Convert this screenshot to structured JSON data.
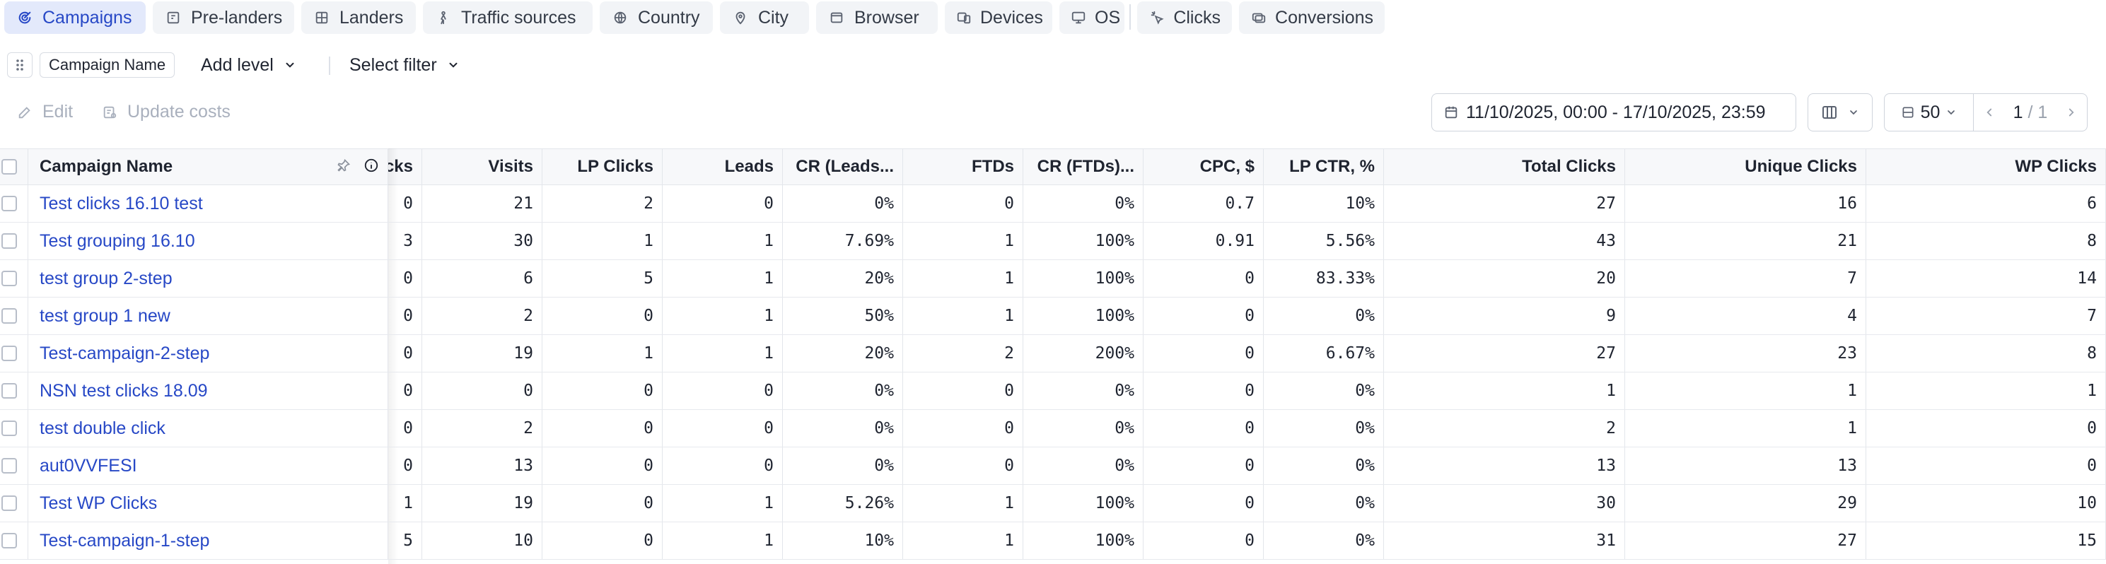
{
  "tabs": [
    {
      "label": "Campaigns",
      "icon": "campaigns-icon",
      "active": true
    },
    {
      "label": "Pre-landers",
      "icon": "pre-landers-icon",
      "active": false
    },
    {
      "label": "Landers",
      "icon": "landers-icon",
      "active": false
    },
    {
      "label": "Traffic sources",
      "icon": "traffic-sources-icon",
      "active": false
    },
    {
      "label": "Country",
      "icon": "globe-icon",
      "active": false
    },
    {
      "label": "City",
      "icon": "map-pin-icon",
      "active": false
    },
    {
      "label": "Browser",
      "icon": "browser-icon",
      "active": false
    },
    {
      "label": "Devices",
      "icon": "devices-icon",
      "active": false
    },
    {
      "label": "OS",
      "icon": "monitor-icon",
      "active": false
    },
    {
      "label": "Clicks",
      "icon": "clicks-icon",
      "active": false
    },
    {
      "label": "Conversions",
      "icon": "conversions-icon",
      "active": false
    }
  ],
  "grouping": {
    "level_chip": "Campaign Name",
    "add_level": "Add level",
    "select_filter": "Select filter"
  },
  "actions": {
    "edit": "Edit",
    "update_costs": "Update costs"
  },
  "date_range": "11/10/2025, 00:00 - 17/10/2025, 23:59",
  "pagination": {
    "page_size": "50",
    "current": "1",
    "separator": " / ",
    "total": "1"
  },
  "table": {
    "columns": [
      "Campaign Name",
      "cks",
      "Visits",
      "LP Clicks",
      "Leads",
      "CR (Leads...",
      "FTDs",
      "CR (FTDs)...",
      "CPC, $",
      "LP CTR, %",
      "Total Clicks",
      "Unique Clicks",
      "WP Clicks"
    ],
    "rows": [
      [
        "Test clicks 16.10 test",
        "0",
        "21",
        "2",
        "0",
        "0%",
        "0",
        "0%",
        "0.7",
        "10%",
        "27",
        "16",
        "6"
      ],
      [
        "Test grouping 16.10",
        "3",
        "30",
        "1",
        "1",
        "7.69%",
        "1",
        "100%",
        "0.91",
        "5.56%",
        "43",
        "21",
        "8"
      ],
      [
        "test group 2-step",
        "0",
        "6",
        "5",
        "1",
        "20%",
        "1",
        "100%",
        "0",
        "83.33%",
        "20",
        "7",
        "14"
      ],
      [
        "test group 1 new",
        "0",
        "2",
        "0",
        "1",
        "50%",
        "1",
        "100%",
        "0",
        "0%",
        "9",
        "4",
        "7"
      ],
      [
        "Test-campaign-2-step",
        "0",
        "19",
        "1",
        "1",
        "20%",
        "2",
        "200%",
        "0",
        "6.67%",
        "27",
        "23",
        "8"
      ],
      [
        "NSN test clicks 18.09",
        "0",
        "0",
        "0",
        "0",
        "0%",
        "0",
        "0%",
        "0",
        "0%",
        "1",
        "1",
        "1"
      ],
      [
        "test double click",
        "0",
        "2",
        "0",
        "0",
        "0%",
        "0",
        "0%",
        "0",
        "0%",
        "2",
        "1",
        "0"
      ],
      [
        "aut0VVFESI",
        "0",
        "13",
        "0",
        "0",
        "0%",
        "0",
        "0%",
        "0",
        "0%",
        "13",
        "13",
        "0"
      ],
      [
        "Test WP Clicks",
        "1",
        "19",
        "0",
        "1",
        "5.26%",
        "1",
        "100%",
        "0",
        "0%",
        "30",
        "29",
        "10"
      ],
      [
        "Test-campaign-1-step",
        "5",
        "10",
        "0",
        "1",
        "10%",
        "1",
        "100%",
        "0",
        "0%",
        "31",
        "27",
        "15"
      ]
    ]
  },
  "colors": {
    "accent": "#2748c6",
    "active_tab_bg": "#e3e9fb",
    "muted": "#a9b0bd"
  }
}
